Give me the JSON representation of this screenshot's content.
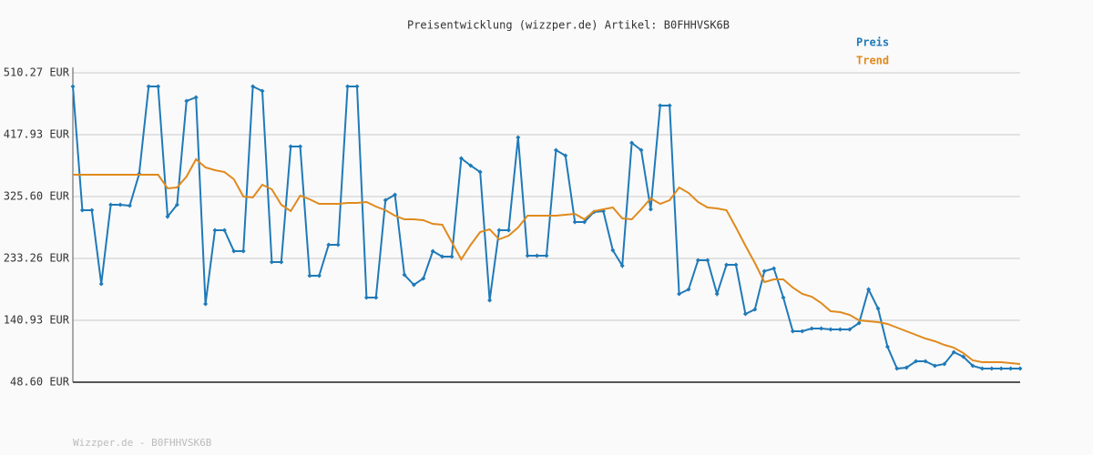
{
  "chart_data": {
    "type": "line",
    "title": "Preisentwicklung (wizzper.de) Artikel: B0FHHVSK6B",
    "footer": "Wizzper.de - B0FHHVSK6B",
    "categories": [
      null,
      null,
      null,
      null,
      null,
      null,
      null,
      null,
      null,
      null,
      null,
      null,
      null,
      null,
      null,
      null,
      null,
      null,
      null,
      null,
      null,
      null,
      null,
      null,
      null,
      null,
      null,
      null,
      null,
      null,
      null,
      null,
      null,
      null,
      null,
      null,
      null,
      null,
      null,
      null,
      null,
      null,
      null,
      null,
      null,
      null,
      null,
      null,
      null,
      null,
      null,
      null,
      null,
      null,
      null,
      null,
      null,
      null,
      null,
      null,
      null,
      null,
      null,
      null,
      null,
      null,
      null,
      null,
      null,
      null,
      null,
      null,
      null,
      null,
      null,
      null,
      null,
      null,
      null,
      null,
      null,
      null,
      null,
      null,
      null,
      null,
      null,
      null,
      null,
      null,
      null,
      null,
      null,
      null,
      null,
      null,
      null,
      null,
      null,
      null,
      null
    ],
    "series": [
      {
        "name": "Preis",
        "color": "#1f7ab8",
        "markers": true,
        "values": [
          489.9,
          305.2,
          305.2,
          195.3,
          313.4,
          313.4,
          312.0,
          359.6,
          489.9,
          489.9,
          295.7,
          313.4,
          468.2,
          473.6,
          165.4,
          275.4,
          275.4,
          244.1,
          244.1,
          489.9,
          483.1,
          227.8,
          227.8,
          400.3,
          400.3,
          207.5,
          207.5,
          253.6,
          253.6,
          489.9,
          489.9,
          174.9,
          174.9,
          320.2,
          328.3,
          208.8,
          193.9,
          203.4,
          244.1,
          236.0,
          236.0,
          382.6,
          371.8,
          362.3,
          170.8,
          275.4,
          275.4,
          413.9,
          237.3,
          237.3,
          237.3,
          394.9,
          386.7,
          287.6,
          287.6,
          302.5,
          303.9,
          245.5,
          222.4,
          405.7,
          394.9,
          306.6,
          461.4,
          461.4,
          180.3,
          187.1,
          230.6,
          230.6,
          180.3,
          223.8,
          223.8,
          150.4,
          157.2,
          214.3,
          218.3,
          174.9,
          124.6,
          124.6,
          128.7,
          128.7,
          127.4,
          127.4,
          127.4,
          136.9,
          187.1,
          158.6,
          101.6,
          69.0,
          70.3,
          79.8,
          79.8,
          73.0,
          75.8,
          93.4,
          86.6,
          73.0,
          69.0,
          69.0,
          69.0,
          69.0,
          69.0
        ]
      },
      {
        "name": "Trend",
        "color": "#e08a1e",
        "markers": false,
        "values": [
          358.2,
          358.2,
          358.2,
          358.2,
          358.2,
          358.2,
          358.2,
          358.2,
          358.2,
          358.2,
          337.8,
          339.2,
          355.5,
          381.3,
          369.1,
          365.0,
          362.3,
          351.4,
          325.6,
          324.2,
          343.3,
          336.5,
          313.4,
          303.9,
          327.0,
          321.5,
          314.7,
          314.7,
          314.7,
          316.1,
          316.1,
          317.5,
          310.7,
          305.2,
          297.1,
          291.7,
          291.7,
          290.3,
          284.9,
          283.5,
          257.7,
          231.9,
          253.6,
          272.6,
          276.7,
          261.8,
          267.2,
          279.4,
          297.1,
          297.1,
          297.1,
          297.1,
          298.4,
          299.8,
          291.7,
          303.9,
          306.6,
          309.3,
          293.0,
          291.7,
          306.6,
          322.9,
          314.7,
          320.2,
          339.2,
          331.0,
          317.5,
          309.3,
          307.9,
          305.2,
          279.4,
          252.3,
          226.5,
          198.0,
          202.0,
          202.0,
          189.8,
          180.3,
          176.2,
          166.7,
          154.5,
          153.2,
          149.1,
          140.9,
          139.6,
          138.2,
          135.5,
          130.1,
          124.6,
          119.2,
          113.8,
          109.7,
          104.3,
          100.2,
          92.1,
          81.2,
          78.5,
          78.5,
          78.5,
          77.1,
          75.8
        ]
      }
    ],
    "ylim": [
      48.6,
      510.27
    ],
    "yticks": [
      {
        "value": 48.6,
        "label": "48.60 EUR"
      },
      {
        "value": 140.93,
        "label": "140.93 EUR"
      },
      {
        "value": 233.26,
        "label": "233.26 EUR"
      },
      {
        "value": 325.6,
        "label": "325.60 EUR"
      },
      {
        "value": 417.93,
        "label": "417.93 EUR"
      },
      {
        "value": 510.27,
        "label": "510.27 EUR"
      }
    ],
    "grid": true,
    "legend": "top-right"
  }
}
